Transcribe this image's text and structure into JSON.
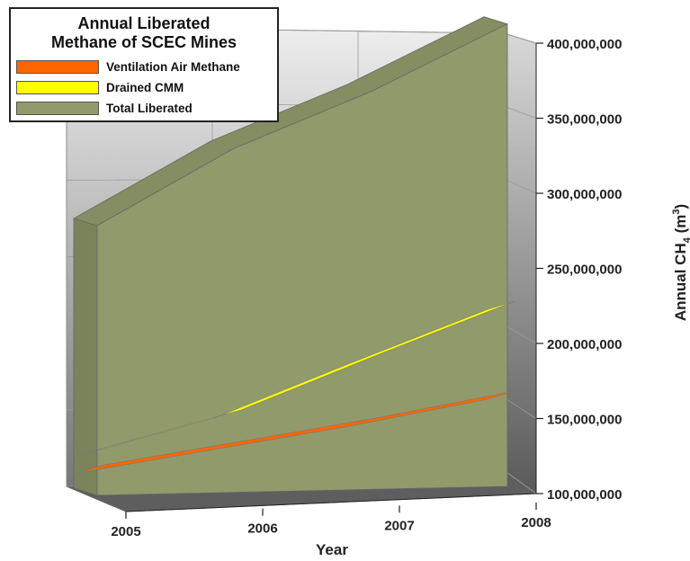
{
  "chart_data": {
    "type": "area",
    "title": "Annual Liberated Methane of SCEC Mines",
    "title_lines": [
      "Annual Liberated",
      "Methane of SCEC Mines"
    ],
    "xlabel": "Year",
    "ylabel": "Annual CH4 (m3)",
    "ylabel_parts": {
      "main": "Annual CH",
      "sub": "4",
      "paren_open": " (m",
      "sup": "3",
      "paren_close": ")"
    },
    "categories": [
      "2005",
      "2006",
      "2007",
      "2008"
    ],
    "ylim": [
      100000000,
      400000000
    ],
    "y_ticks": [
      "100,000,000",
      "150,000,000",
      "200,000,000",
      "250,000,000",
      "300,000,000",
      "350,000,000",
      "400,000,000"
    ],
    "y_tick_values": [
      100000000,
      150000000,
      200000000,
      250000000,
      300000000,
      350000000,
      400000000
    ],
    "series": [
      {
        "name": "Total Liberated",
        "values": [
          289000000,
          336000000,
          370000000,
          411000000
        ],
        "color": "#919a6b"
      },
      {
        "name": "Drained CMM",
        "values": [
          141000000,
          163000000,
          196000000,
          228000000
        ],
        "color": "#ffff00"
      },
      {
        "name": "Ventilation Air Methane",
        "values": [
          129000000,
          142000000,
          155000000,
          170000000
        ],
        "color": "#ff6600"
      }
    ],
    "legend_order": [
      "Ventilation Air Methane",
      "Drained CMM",
      "Total Liberated"
    ],
    "legend_placement": "top-left",
    "grid": true,
    "view": "3d"
  }
}
